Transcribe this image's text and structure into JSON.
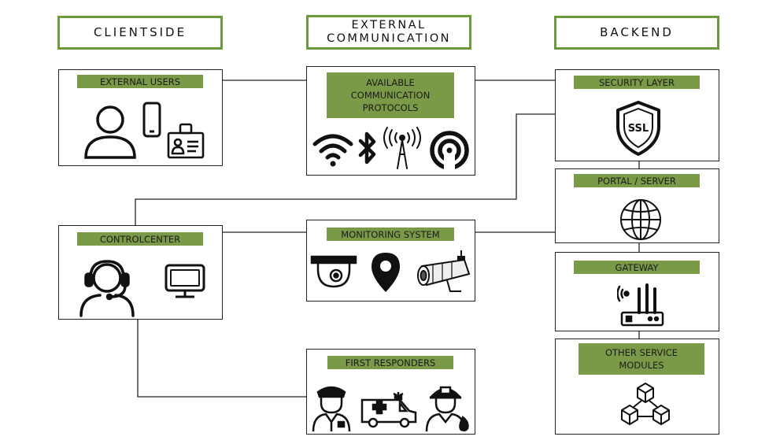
{
  "columns": {
    "clientside": "CLIENTSIDE",
    "external": "EXTERNAL\nCOMMUNICATION",
    "backend": "BACKEND"
  },
  "boxes": {
    "external_users": "EXTERNAL USERS",
    "protocols": "AVAILABLE\nCOMMUNICATION\nPROTOCOLS",
    "security": "SECURITY LAYER",
    "portal": "PORTAL / SERVER",
    "control": "CONTROLCENTER",
    "monitoring": "MONITORING SYSTEM",
    "gateway": "GATEWAY",
    "responders": "FIRST RESPONDERS",
    "other_modules": "OTHER SERVICE\nMODULES"
  },
  "ssl_text": "SSL",
  "colors": {
    "header_border": "#6b9a3d",
    "label_bg": "#7a9a47",
    "line": "#222222"
  },
  "icons": [
    "person-icon",
    "smartphone-icon",
    "id-badge-icon",
    "wifi-icon",
    "bluetooth-icon",
    "antenna-icon",
    "nfc-icon",
    "ssl-shield-icon",
    "globe-icon",
    "headset-operator-icon",
    "monitor-icon",
    "dome-camera-icon",
    "location-pin-icon",
    "bullet-camera-icon",
    "router-icon",
    "police-officer-icon",
    "ambulance-icon",
    "firefighter-icon",
    "cubes-icon"
  ]
}
